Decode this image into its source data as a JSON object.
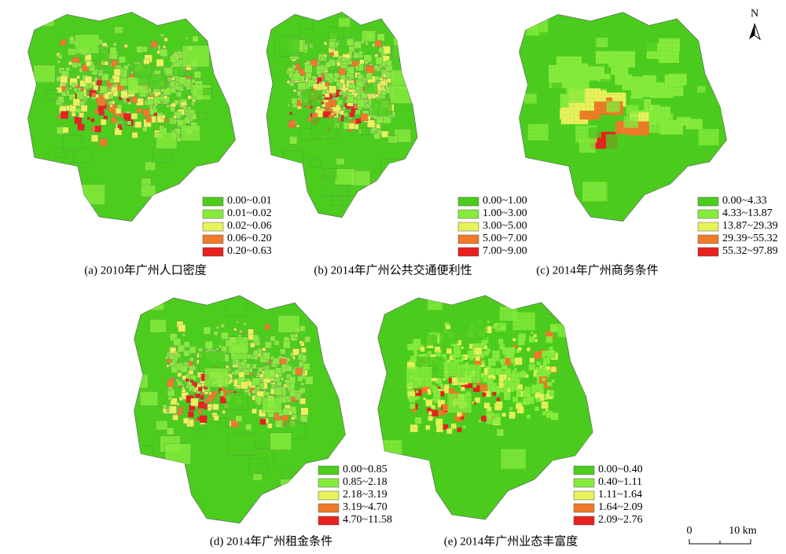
{
  "panels": [
    {
      "caption": "(a) 2010年广州人口密度",
      "legend": [
        {
          "label": "0.00~0.01",
          "color": "#4ccd1e"
        },
        {
          "label": "0.01~0.02",
          "color": "#86ec3c"
        },
        {
          "label": "0.02~0.06",
          "color": "#e8f25a"
        },
        {
          "label": "0.06~0.20",
          "color": "#f07a28"
        },
        {
          "label": "0.20~0.63",
          "color": "#e8201e"
        }
      ]
    },
    {
      "caption": "(b) 2014年广州公共交通便利性",
      "legend": [
        {
          "label": "0.00~1.00",
          "color": "#4ccd1e"
        },
        {
          "label": "1.00~3.00",
          "color": "#86ec3c"
        },
        {
          "label": "3.00~5.00",
          "color": "#e8f25a"
        },
        {
          "label": "5.00~7.00",
          "color": "#f07a28"
        },
        {
          "label": "7.00~9.00",
          "color": "#e8201e"
        }
      ]
    },
    {
      "caption": "(c) 2014年广州商务条件",
      "legend": [
        {
          "label": "0.00~4.33",
          "color": "#4ccd1e"
        },
        {
          "label": "4.33~13.87",
          "color": "#86ec3c"
        },
        {
          "label": "13.87~29.39",
          "color": "#e8f25a"
        },
        {
          "label": "29.39~55.32",
          "color": "#f07a28"
        },
        {
          "label": "55.32~97.89",
          "color": "#e8201e"
        }
      ]
    },
    {
      "caption": "(d) 2014年广州租金条件",
      "legend": [
        {
          "label": "0.00~0.85",
          "color": "#4ccd1e"
        },
        {
          "label": "0.85~2.18",
          "color": "#86ec3c"
        },
        {
          "label": "2.18~3.19",
          "color": "#e8f25a"
        },
        {
          "label": "3.19~4.70",
          "color": "#f07a28"
        },
        {
          "label": "4.70~11.58",
          "color": "#e8201e"
        }
      ]
    },
    {
      "caption": "(e) 2014年广州业态丰富度",
      "legend": [
        {
          "label": "0.00~0.40",
          "color": "#4ccd1e"
        },
        {
          "label": "0.40~1.11",
          "color": "#86ec3c"
        },
        {
          "label": "1.11~1.64",
          "color": "#e8f25a"
        },
        {
          "label": "1.64~2.09",
          "color": "#f07a28"
        },
        {
          "label": "2.09~2.76",
          "color": "#e8201e"
        }
      ]
    }
  ],
  "north": "N",
  "scale": {
    "start": "0",
    "end": "10 km"
  }
}
